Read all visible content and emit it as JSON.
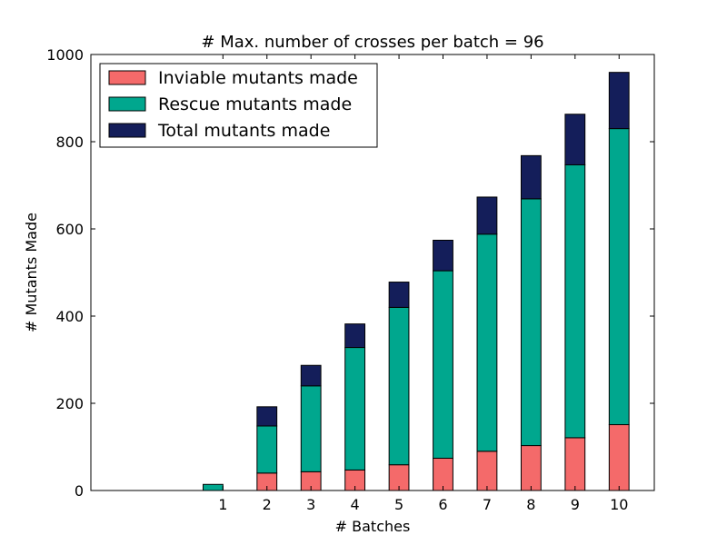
{
  "chart_data": {
    "type": "bar",
    "stacked": true,
    "title": "# Max. number of crosses per batch = 96",
    "xlabel": "# Batches",
    "ylabel": "# Mutants Made",
    "ylim": [
      0,
      1000
    ],
    "xlim": [
      -2,
      10.8
    ],
    "yticks": [
      0,
      200,
      400,
      600,
      800,
      1000
    ],
    "xticks": [
      1,
      2,
      3,
      4,
      5,
      6,
      7,
      8,
      9,
      10
    ],
    "bar_offsets": [
      -0.225,
      0,
      0,
      0,
      0,
      0,
      0,
      0,
      0,
      0
    ],
    "grid": false,
    "legend_position": "top-left",
    "categories": [
      "1",
      "2",
      "3",
      "4",
      "5",
      "6",
      "7",
      "8",
      "9",
      "10"
    ],
    "series": [
      {
        "name": "Inviable mutants made",
        "color": "#f46a6a",
        "values": [
          0,
          40,
          43,
          47,
          59,
          74,
          90,
          103,
          121,
          151
        ]
      },
      {
        "name": "Rescue mutants made",
        "color": "#00a78e",
        "values": [
          14,
          108,
          197,
          281,
          361,
          430,
          498,
          566,
          626,
          679
        ]
      },
      {
        "name": "Total mutants made",
        "color": "#141e5a",
        "values": [
          0,
          44,
          47,
          54,
          58,
          70,
          85,
          99,
          116,
          129
        ]
      }
    ]
  }
}
